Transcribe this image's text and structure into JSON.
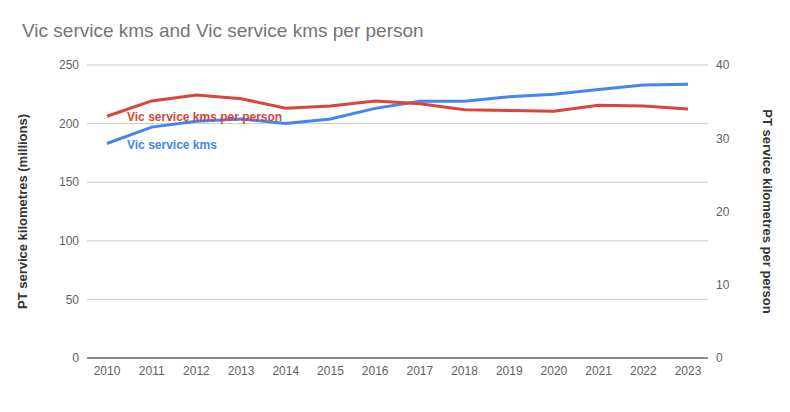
{
  "chart_data": {
    "type": "line",
    "title": "Vic service kms and Vic service kms per person",
    "categories": [
      "2010",
      "2011",
      "2012",
      "2013",
      "2014",
      "2015",
      "2016",
      "2017",
      "2018",
      "2019",
      "2020",
      "2021",
      "2022",
      "2023"
    ],
    "series": [
      {
        "name": "Vic service kms",
        "color": "#4285f4",
        "values": [
          183,
          197,
          202,
          204,
          200,
          204,
          213,
          219,
          219,
          223,
          225,
          229,
          233,
          233.5
        ]
      },
      {
        "name": "Vic service kms per person",
        "color": "#db4437",
        "axis": "y2",
        "values": [
          33.0,
          35.1,
          35.9,
          35.4,
          34.1,
          34.4,
          35.1,
          34.7,
          33.9,
          33.8,
          33.7,
          34.5,
          34.4,
          34.0
        ]
      }
    ],
    "ylabel": "PT service kilometres (millions)",
    "y2label": "PT service kilometres per person",
    "ylim": [
      0,
      250
    ],
    "yticks": [
      0,
      50,
      100,
      150,
      200,
      250
    ],
    "y2lim": [
      0,
      40
    ],
    "y2ticks": [
      0,
      10,
      20,
      30,
      40
    ],
    "grid": true
  }
}
